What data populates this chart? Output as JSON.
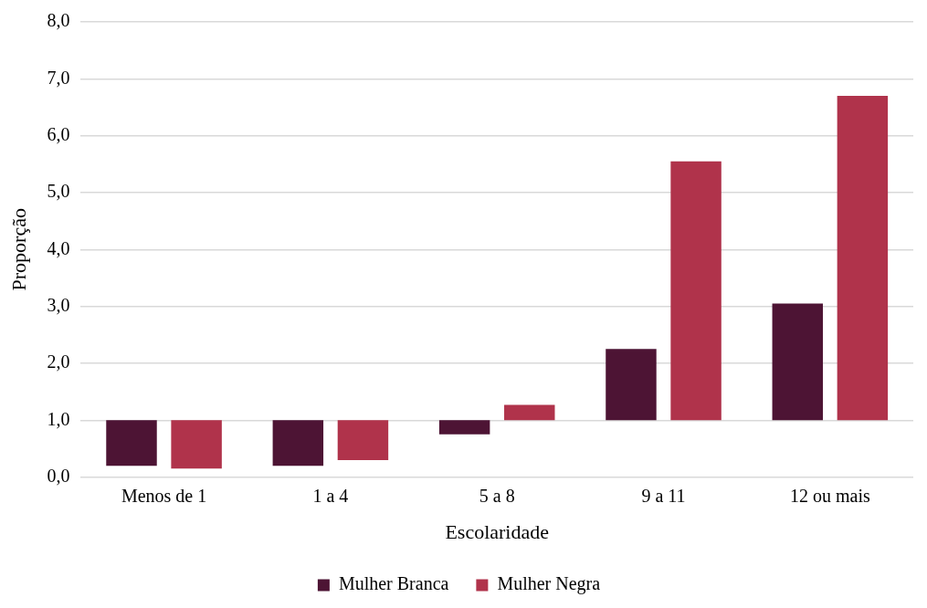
{
  "chart_data": {
    "type": "bar",
    "xlabel": "Escolaridade",
    "ylabel": "Proporção",
    "categories": [
      "Menos de 1",
      "1 a 4",
      "5 a 8",
      "9 a 11",
      "12 ou mais"
    ],
    "series": [
      {
        "name": "Mulher Branca",
        "color": "#4d1434",
        "base": [
          1,
          1,
          1,
          1,
          1
        ],
        "values": [
          -0.8,
          -0.8,
          -0.25,
          1.25,
          2.05
        ]
      },
      {
        "name": "Mulher Negra",
        "color": "#b0334b",
        "base": [
          1,
          1,
          1,
          1,
          1
        ],
        "values": [
          -0.85,
          -0.7,
          0.27,
          4.55,
          5.7
        ]
      }
    ],
    "ylim": [
      0,
      8
    ],
    "yticks": [
      {
        "value": 0,
        "label": "0,0"
      },
      {
        "value": 1,
        "label": "1,0"
      },
      {
        "value": 2,
        "label": "2,0"
      },
      {
        "value": 3,
        "label": "3,0"
      },
      {
        "value": 4,
        "label": "4,0"
      },
      {
        "value": 5,
        "label": "5,0"
      },
      {
        "value": 6,
        "label": "6,0"
      },
      {
        "value": 7,
        "label": "7,0"
      },
      {
        "value": 8,
        "label": "8,0"
      }
    ],
    "grid": "y",
    "legend": "bottom"
  }
}
